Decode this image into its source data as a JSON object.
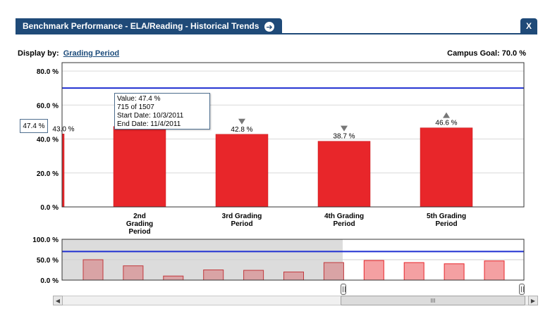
{
  "header": {
    "title": "Benchmark Performance - ELA/Reading - Historical Trends",
    "go_icon": "arrow-right-circle-icon",
    "close_label": "X"
  },
  "controls": {
    "display_by_label": "Display by:",
    "display_by_value": "Grading Period",
    "campus_goal": "Campus Goal: 70.0 %"
  },
  "colors": {
    "bar": "#e8262a",
    "bar_faded": "#f4a0a2",
    "goal_line": "#1f2fd1",
    "header": "#1f4a78"
  },
  "chart_data": [
    {
      "type": "bar",
      "categories": [
        "",
        "2nd Grading Period",
        "3rd Grading Period",
        "4th Grading Period",
        "5th Grading Period"
      ],
      "category_lines": [
        [
          ""
        ],
        [
          "2nd",
          "Grading",
          "Period"
        ],
        [
          "3rd Grading",
          "Period"
        ],
        [
          "4th Grading",
          "Period"
        ],
        [
          "5th Grading",
          "Period"
        ]
      ],
      "values": [
        43.0,
        47.4,
        42.8,
        38.7,
        46.6
      ],
      "value_labels": [
        "43.0 %",
        "",
        "42.8 %",
        "38.7 %",
        "46.6 %"
      ],
      "trend": [
        "",
        "",
        "down",
        "down",
        "up"
      ],
      "yticks": [
        "0.0 %",
        "20.0 %",
        "40.0 %",
        "60.0 %",
        "80.0 %"
      ],
      "ylim": [
        0,
        85
      ],
      "goal": 70.0,
      "grid": true
    },
    {
      "type": "bar",
      "values": [
        50,
        35,
        10,
        25,
        24,
        20,
        43,
        48,
        43,
        40,
        47
      ],
      "yticks": [
        "0.0 %",
        "50.0 %",
        "100.0 %"
      ],
      "ylim": [
        0,
        100
      ],
      "goal": 70.0
    }
  ],
  "tooltip": {
    "line1": "Value: 47.4 %",
    "line2": "715 of 1507",
    "line3": "Start Date:  10/3/2011",
    "line4": "End Date:  11/4/2011"
  },
  "value_flag": "47.4 %",
  "scrollbar": {
    "left_arrow": "◀",
    "right_arrow": "▶",
    "thumb_grip": "III"
  }
}
